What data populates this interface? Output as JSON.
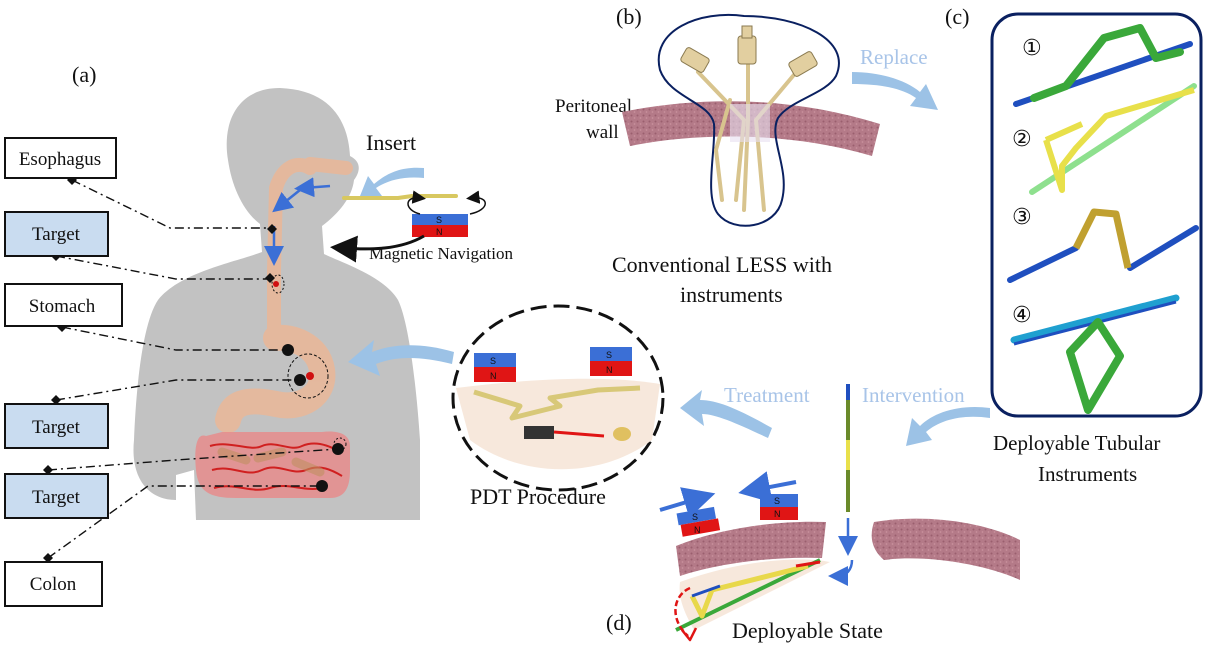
{
  "panel_labels": {
    "a": "(a)",
    "b": "(b)",
    "c": "(c)",
    "d": "(d)"
  },
  "left_labels": {
    "esophagus": "Esophagus",
    "target_1": "Target",
    "stomach": "Stomach",
    "target_2": "Target",
    "target_3": "Target",
    "colon": "Colon"
  },
  "insert_label": "Insert",
  "magnetic_navigation_label": "Magnetic Navigation",
  "magnet_poles": {
    "s": "S",
    "n": "N"
  },
  "peritoneal_wall_line1": "Peritoneal",
  "peritoneal_wall_line2": "wall",
  "conventional_line1": "Conventional LESS with",
  "conventional_line2": "instruments",
  "replace_label": "Replace",
  "treatment_label": "Treatment",
  "intervention_label": "Intervention",
  "pdt_label": "PDT Procedure",
  "deployable_tubular_line1": "Deployable Tubular",
  "deployable_tubular_line2": "Instruments",
  "deployable_state_label": "Deployable State",
  "instrument_numbers": [
    "①",
    "②",
    "③",
    "④"
  ],
  "colors": {
    "body": "#c2c2c2",
    "target_box": "#c9dcf0",
    "arrow": "#9cc2e6",
    "tissue": "#a86a7a",
    "magnet_blue": "#3b6fd6",
    "magnet_red": "#e01515",
    "instrument_green": "#3aa83a",
    "instrument_yellow": "#e8d84a",
    "instrument_blue": "#1f4fbf"
  }
}
